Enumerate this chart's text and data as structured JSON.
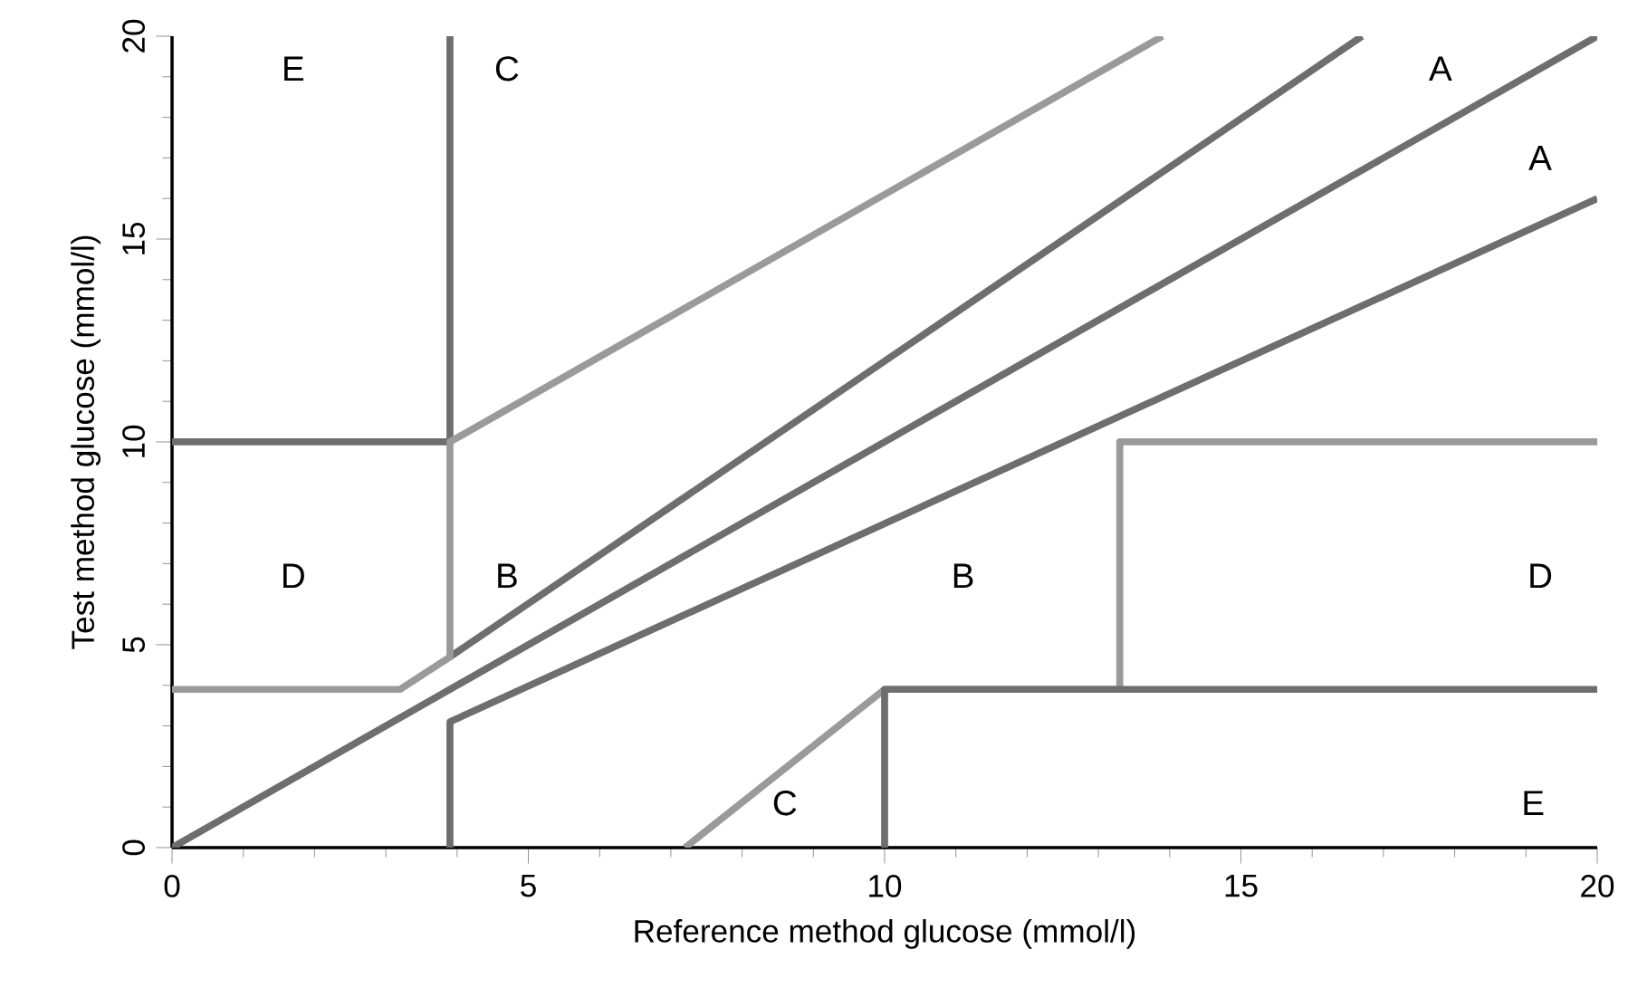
{
  "chart_data": {
    "type": "line",
    "xlabel": "Reference method glucose  (mmol/l)",
    "ylabel": "Test method glucose (mmol/l)",
    "xlim": [
      0,
      20
    ],
    "ylim": [
      0,
      20
    ],
    "xticks": [
      0,
      5,
      10,
      15,
      20
    ],
    "yticks": [
      0,
      5,
      10,
      15,
      20
    ],
    "marker": "none",
    "line_style": "solid",
    "series": [
      {
        "color": "#6e6e6e",
        "x": [
          0,
          20
        ],
        "values": [
          0,
          20
        ]
      },
      {
        "color": "#6e6e6e",
        "x": [
          3.9,
          16.7
        ],
        "values": [
          4.7,
          20
        ]
      },
      {
        "color": "#6e6e6e",
        "x": [
          3.9,
          3.9,
          20
        ],
        "values": [
          0,
          3.1,
          16
        ]
      },
      {
        "color": "#6e6e6e",
        "x": [
          0,
          3.9,
          3.9
        ],
        "values": [
          10,
          10,
          20
        ]
      },
      {
        "color": "#9a9a9a",
        "x": [
          0,
          3.2,
          3.9,
          3.9,
          13.9
        ],
        "values": [
          3.9,
          3.9,
          4.7,
          10,
          20
        ]
      },
      {
        "color": "#9a9a9a",
        "x": [
          7.2,
          10,
          13.3,
          13.3,
          20
        ],
        "values": [
          0,
          3.9,
          3.9,
          10,
          10
        ]
      },
      {
        "color": "#6e6e6e",
        "x": [
          10,
          10,
          20
        ],
        "values": [
          0,
          3.9,
          3.9
        ]
      }
    ],
    "annotations": [
      "E",
      "C",
      "A",
      "A",
      "D",
      "B",
      "B",
      "D",
      "C",
      "E"
    ]
  }
}
